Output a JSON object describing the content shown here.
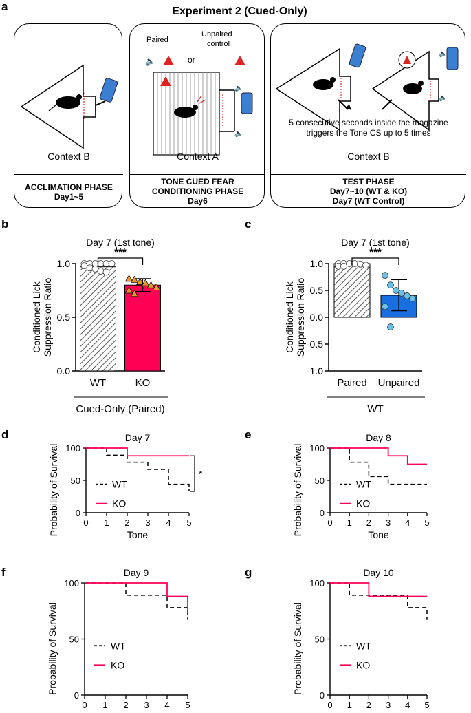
{
  "panels": {
    "a": "a",
    "b": "b",
    "c": "c",
    "d": "d",
    "e": "e",
    "f": "f",
    "g": "g"
  },
  "experiment_title": "Experiment 2 (Cued-Only)",
  "contexts": [
    {
      "context": "Context B",
      "phase_lines": [
        "ACCLIMATION PHASE",
        "Day1~5"
      ]
    },
    {
      "context": "Context A",
      "phase_lines": [
        "TONE CUED FEAR",
        "CONDITIONING PHASE",
        "Day6"
      ],
      "paired": "Paired",
      "or": "or",
      "unpaired_lines": [
        "Unpaired",
        "control"
      ]
    },
    {
      "context": "Context B",
      "phase_lines": [
        "TEST PHASE",
        "Day7~10 (WT & KO)",
        "Day7 (WT Control)"
      ],
      "note_lines": [
        "5 consecutive seconds inside the magazine",
        "triggers the Tone CS up to 5 times"
      ]
    }
  ],
  "colors": {
    "wt": "#000000",
    "ko": "#ff0055",
    "unpaired": "#1a6fe0",
    "triangle": "#e69a2e",
    "dot": "#6cc0e8"
  },
  "chart_data": [
    {
      "panel": "b",
      "type": "bar",
      "title": "Day 7 (1st tone)",
      "ylabel": "Conditioned Lick Suppression Ratio",
      "categories": [
        "WT",
        "KO"
      ],
      "values": [
        0.97,
        0.8
      ],
      "errors": [
        0.03,
        0.06
      ],
      "ylim": [
        0.0,
        1.0
      ],
      "yticks": [
        "0.0",
        "0.5",
        "1.0"
      ],
      "group_label": "Cued-Only (Paired)",
      "significance": "***",
      "points": {
        "WT": [
          1.0,
          1.0,
          1.0,
          1.0,
          1.0,
          1.0,
          0.98,
          0.96,
          0.95,
          0.93,
          0.92
        ],
        "KO": [
          0.86,
          0.85,
          0.83,
          0.82,
          0.8,
          0.78,
          0.75,
          0.72
        ]
      }
    },
    {
      "panel": "c",
      "type": "bar",
      "title": "Day 7 (1st tone)",
      "ylabel": "Conditioned Lick Suppression Ratio",
      "categories": [
        "Paired",
        "Unpaired"
      ],
      "values": [
        1.0,
        0.41
      ],
      "errors": [
        0.02,
        0.29
      ],
      "ylim": [
        -1.0,
        1.0
      ],
      "yticks": [
        "-1.0",
        "-0.5",
        "0.0",
        "0.5",
        "1.0"
      ],
      "group_label": "WT",
      "significance": "***",
      "points": {
        "Paired": [
          1.0,
          1.0,
          1.0,
          1.0,
          0.99,
          0.97,
          0.95,
          0.95
        ],
        "Unpaired": [
          0.78,
          0.6,
          0.5,
          0.45,
          0.4,
          0.35,
          0.2,
          -0.18
        ]
      }
    },
    {
      "panel": "d",
      "type": "line",
      "title": "Day 7",
      "xlabel": "Tone",
      "ylabel": "Probability of Survival",
      "xticks": [
        "0",
        "1",
        "2",
        "3",
        "4",
        "5"
      ],
      "yticks": [
        "0",
        "50",
        "100"
      ],
      "series": [
        {
          "name": "WT",
          "x": [
            0,
            1,
            2,
            3,
            4,
            5
          ],
          "y": [
            100,
            89,
            78,
            67,
            44,
            33
          ]
        },
        {
          "name": "KO",
          "x": [
            0,
            1,
            2,
            3,
            4,
            5
          ],
          "y": [
            100,
            100,
            88,
            88,
            88,
            88
          ]
        }
      ],
      "significance": "*"
    },
    {
      "panel": "e",
      "type": "line",
      "title": "Day 8",
      "xlabel": "Tone",
      "ylabel": "Probability of Survival",
      "xticks": [
        "0",
        "1",
        "2",
        "3",
        "4",
        "5"
      ],
      "yticks": [
        "0",
        "50",
        "100"
      ],
      "series": [
        {
          "name": "WT",
          "x": [
            0,
            1,
            2,
            3,
            4,
            5
          ],
          "y": [
            100,
            78,
            56,
            44,
            44,
            44
          ]
        },
        {
          "name": "KO",
          "x": [
            0,
            1,
            2,
            3,
            4,
            5
          ],
          "y": [
            100,
            100,
            100,
            88,
            75,
            75
          ]
        }
      ]
    },
    {
      "panel": "f",
      "type": "line",
      "title": "Day 9",
      "xlabel": "Tone",
      "ylabel": "Probability of Survival",
      "xticks": [
        "0",
        "1",
        "2",
        "3",
        "4",
        "5"
      ],
      "yticks": [
        "0",
        "50",
        "100"
      ],
      "series": [
        {
          "name": "WT",
          "x": [
            0,
            1,
            2,
            3,
            4,
            5
          ],
          "y": [
            100,
            100,
            89,
            89,
            78,
            67
          ]
        },
        {
          "name": "KO",
          "x": [
            0,
            1,
            2,
            3,
            4,
            5
          ],
          "y": [
            100,
            100,
            100,
            100,
            88,
            75
          ]
        }
      ]
    },
    {
      "panel": "g",
      "type": "line",
      "title": "Day 10",
      "xlabel": "Tone",
      "ylabel": "Probability of Survival",
      "xticks": [
        "0",
        "1",
        "2",
        "3",
        "4",
        "5"
      ],
      "yticks": [
        "0",
        "50",
        "100"
      ],
      "series": [
        {
          "name": "WT",
          "x": [
            0,
            1,
            2,
            3,
            4,
            5
          ],
          "y": [
            100,
            89,
            89,
            89,
            78,
            67
          ]
        },
        {
          "name": "KO",
          "x": [
            0,
            1,
            2,
            3,
            4,
            5
          ],
          "y": [
            100,
            100,
            88,
            88,
            88,
            88
          ]
        }
      ]
    }
  ]
}
